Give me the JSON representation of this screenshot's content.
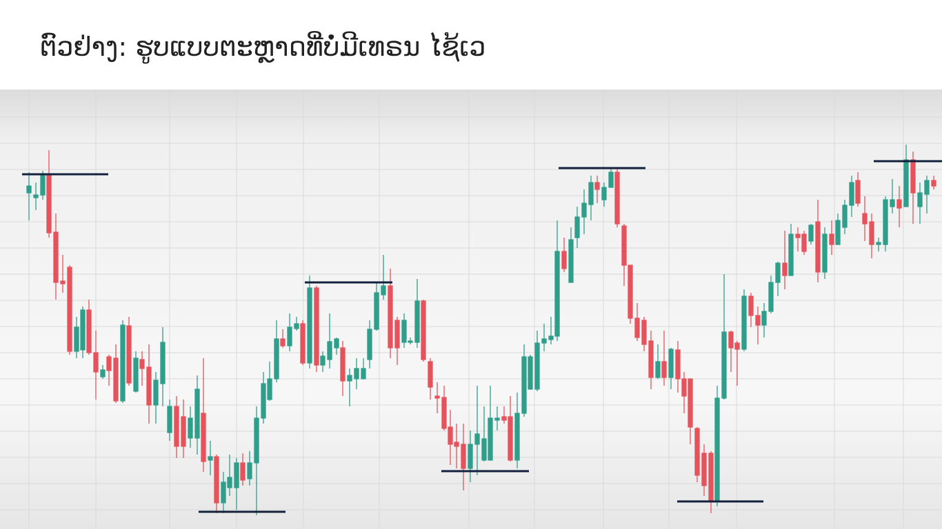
{
  "header": {
    "title": "ຕົວຢ່າງ: ຮູບແບບຕະຫຼາດທີ່ບໍ່ມີເທຣນ ໄຊ້ເວ"
  }
}
